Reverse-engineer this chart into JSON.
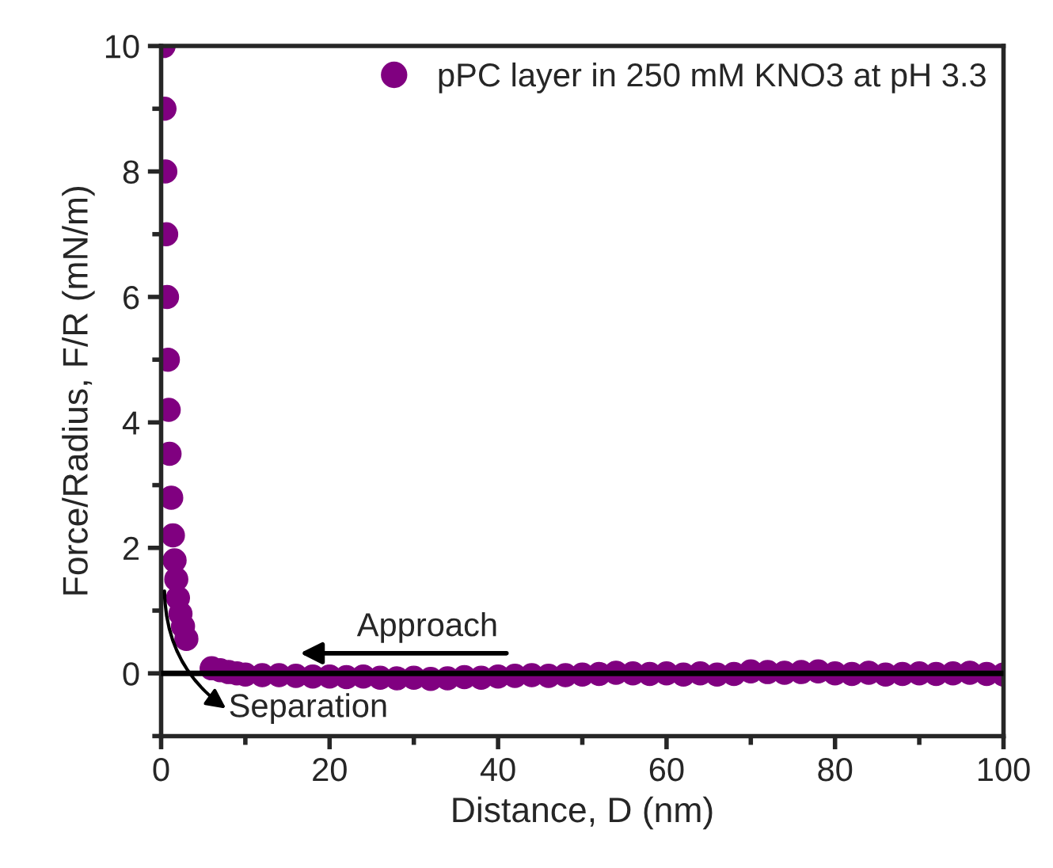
{
  "chart_data": {
    "type": "scatter",
    "xlabel": "Distance, D (nm)",
    "ylabel": "Force/Radius, F/R (mN/m)",
    "xlim": [
      0,
      100
    ],
    "ylim": [
      -1,
      10
    ],
    "xticks": [
      0,
      20,
      40,
      60,
      80,
      100
    ],
    "yticks": [
      0,
      2,
      4,
      6,
      8,
      10
    ],
    "grid": false,
    "legend": "top right",
    "marker": "circle",
    "series": [
      {
        "name": "pPC layer in 250 mM KNO3 at pH 3.3",
        "color": "#800080",
        "x": [
          0.3,
          0.4,
          0.5,
          0.6,
          0.7,
          0.8,
          0.9,
          1.0,
          1.2,
          1.4,
          1.6,
          1.8,
          2.0,
          2.3,
          2.6,
          3,
          6,
          7,
          8,
          9,
          10,
          12,
          14,
          16,
          18,
          20,
          22,
          24,
          26,
          28,
          30,
          32,
          34,
          36,
          38,
          40,
          42,
          44,
          46,
          48,
          50,
          52,
          54,
          56,
          58,
          60,
          62,
          64,
          66,
          68,
          70,
          72,
          74,
          76,
          78,
          80,
          82,
          84,
          86,
          88,
          90,
          92,
          94,
          96,
          98,
          100
        ],
        "values": [
          10,
          9,
          8,
          7,
          6,
          5,
          4.2,
          3.5,
          2.8,
          2.2,
          1.8,
          1.5,
          1.2,
          0.95,
          0.75,
          0.55,
          0.08,
          0.05,
          0.02,
          0.0,
          -0.02,
          -0.03,
          -0.03,
          -0.04,
          -0.05,
          -0.05,
          -0.06,
          -0.05,
          -0.07,
          -0.08,
          -0.07,
          -0.09,
          -0.08,
          -0.06,
          -0.07,
          -0.05,
          -0.04,
          -0.03,
          -0.04,
          -0.03,
          -0.02,
          -0.01,
          0.01,
          0.0,
          -0.01,
          0.0,
          -0.02,
          0.0,
          -0.02,
          -0.01,
          0.03,
          0.02,
          0.01,
          0.02,
          0.03,
          0.0,
          -0.01,
          0.01,
          -0.02,
          -0.01,
          0.0,
          -0.01,
          0.0,
          0.01,
          -0.01,
          -0.02
        ]
      }
    ],
    "ref_lines": [
      {
        "axis": "y",
        "value": 0,
        "color": "#000000"
      }
    ],
    "annotations": [
      "Approach",
      "Separation"
    ]
  }
}
